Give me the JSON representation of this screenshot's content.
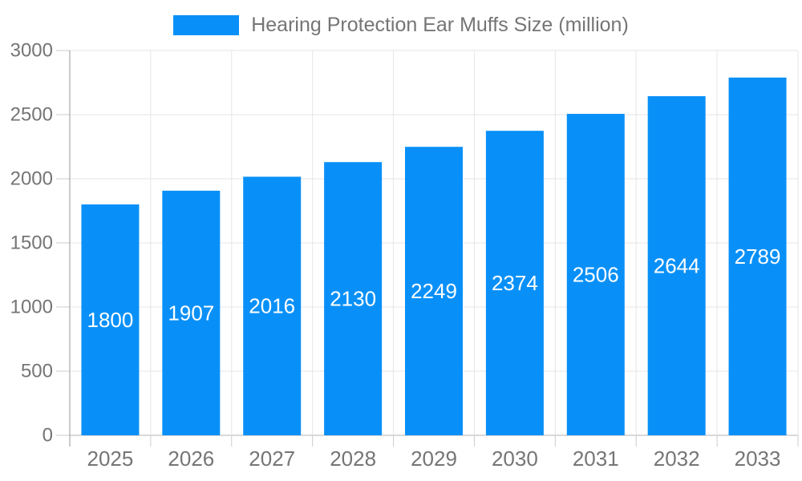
{
  "chart_data": {
    "type": "bar",
    "title": "Hearing Protection Ear Muffs Size (million)",
    "categories": [
      "2025",
      "2026",
      "2027",
      "2028",
      "2029",
      "2030",
      "2031",
      "2032",
      "2033"
    ],
    "values": [
      1800,
      1907,
      2016,
      2130,
      2249,
      2374,
      2506,
      2644,
      2789
    ],
    "xlabel": "",
    "ylabel": "",
    "ylim": [
      0,
      3000
    ],
    "yticks": [
      0,
      500,
      1000,
      1500,
      2000,
      2500,
      3000
    ],
    "grid": true,
    "legend_position": "top-center",
    "bar_labels": "inside-center",
    "colors": {
      "bar": "#0990F8",
      "bar_label_text": "#ffffff",
      "axis_text": "#757575",
      "grid_line": "#e6e6e6",
      "y_axis_line": "#999999",
      "x_baseline": "#b3b3b3",
      "tick": "#cccccc",
      "background": "#ffffff"
    }
  }
}
